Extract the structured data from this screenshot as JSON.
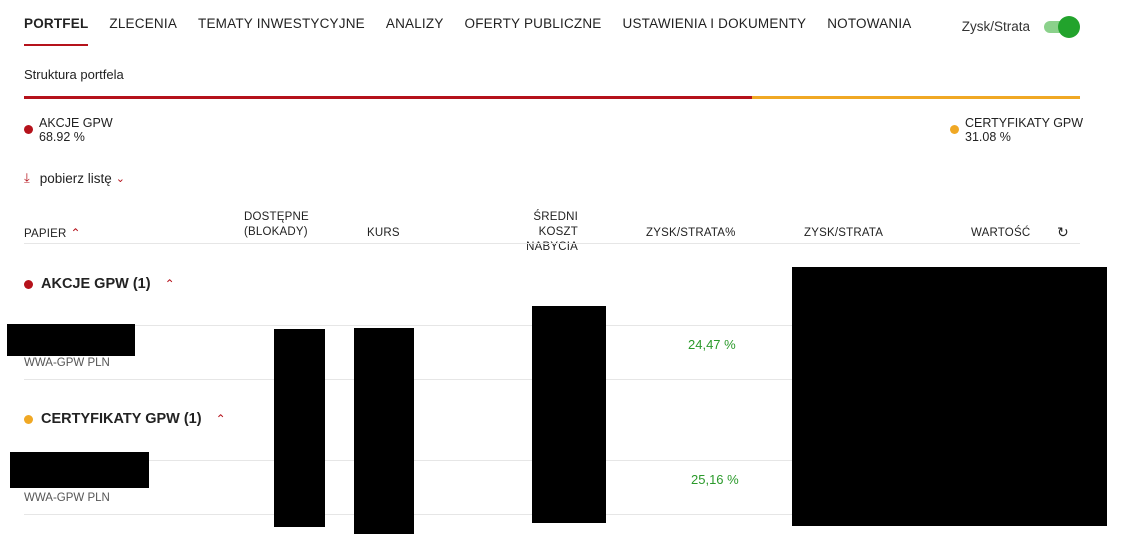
{
  "nav": {
    "tabs": [
      {
        "label": "PORTFEL",
        "active": true
      },
      {
        "label": "ZLECENIA"
      },
      {
        "label": "TEMATY INWESTYCYJNE"
      },
      {
        "label": "ANALIZY"
      },
      {
        "label": "OFERTY PUBLICZNE"
      },
      {
        "label": "USTAWIENIA I DOKUMENTY"
      },
      {
        "label": "NOTOWANIA"
      }
    ],
    "toggle_label": "Zysk/Strata",
    "toggle_on": true
  },
  "structure": {
    "title": "Struktura portfela",
    "segments": [
      {
        "name": "AKCJE GPW",
        "value": "68.92 %",
        "fraction": 0.6892,
        "color": "#b5121b"
      },
      {
        "name": "CERTYFIKATY GPW",
        "value": "31.08 %",
        "fraction": 0.3108,
        "color": "#f0a824"
      }
    ]
  },
  "download": {
    "label": "pobierz listę",
    "icon": "download-arrow-icon"
  },
  "table": {
    "headers": {
      "paper": "PAPIER",
      "available_1": "DOSTĘPNE",
      "available_2": "(BLOKADY)",
      "price": "KURS",
      "avg_cost_1": "ŚREDNI KOSZT",
      "avg_cost_2": "NABYCIA",
      "pl_pct": "ZYSK/STRATA%",
      "pl": "ZYSK/STRATA",
      "value": "WARTOŚĆ"
    },
    "groups": [
      {
        "title": "AKCJE GPW (1)",
        "color": "#b5121b",
        "row": {
          "ticker": "WWA-GPW PLN",
          "pl_pct": "24,47 %"
        }
      },
      {
        "title": "CERTYFIKATY GPW (1)",
        "color": "#f0a824",
        "row": {
          "ticker": "WWA-GPW PLN",
          "pl_pct": "25,16 %"
        }
      }
    ]
  }
}
